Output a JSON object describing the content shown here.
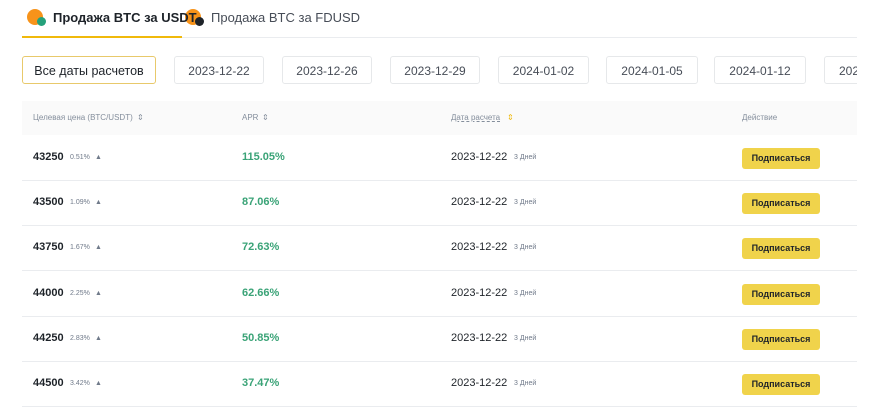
{
  "tabs": [
    "Продажа BTC за USDT",
    "Продажа BTC за FDUSD"
  ],
  "date_filters": [
    "Все даты расчетов",
    "2023-12-22",
    "2023-12-26",
    "2023-12-29",
    "2024-01-02",
    "2024-01-05",
    "2024-01-12",
    "202"
  ],
  "table": {
    "headers": [
      "Целевая цена (BTC/USDT)",
      "APR",
      "Дата расчета",
      "Действие"
    ],
    "rows": [
      {
        "price": "43250",
        "change": "0.51%",
        "apr": "115.05%",
        "date": "2023-12-22",
        "term": "3 Дней",
        "action": "Подписаться"
      },
      {
        "price": "43500",
        "change": "1.09%",
        "apr": "87.06%",
        "date": "2023-12-22",
        "term": "3 Дней",
        "action": "Подписаться"
      },
      {
        "price": "43750",
        "change": "1.67%",
        "apr": "72.63%",
        "date": "2023-12-22",
        "term": "3 Дней",
        "action": "Подписаться"
      },
      {
        "price": "44000",
        "change": "2.25%",
        "apr": "62.66%",
        "date": "2023-12-22",
        "term": "3 Дней",
        "action": "Подписаться"
      },
      {
        "price": "44250",
        "change": "2.83%",
        "apr": "50.85%",
        "date": "2023-12-22",
        "term": "3 Дней",
        "action": "Подписаться"
      },
      {
        "price": "44500",
        "change": "3.42%",
        "apr": "37.47%",
        "date": "2023-12-22",
        "term": "3 Дней",
        "action": "Подписаться"
      }
    ]
  }
}
